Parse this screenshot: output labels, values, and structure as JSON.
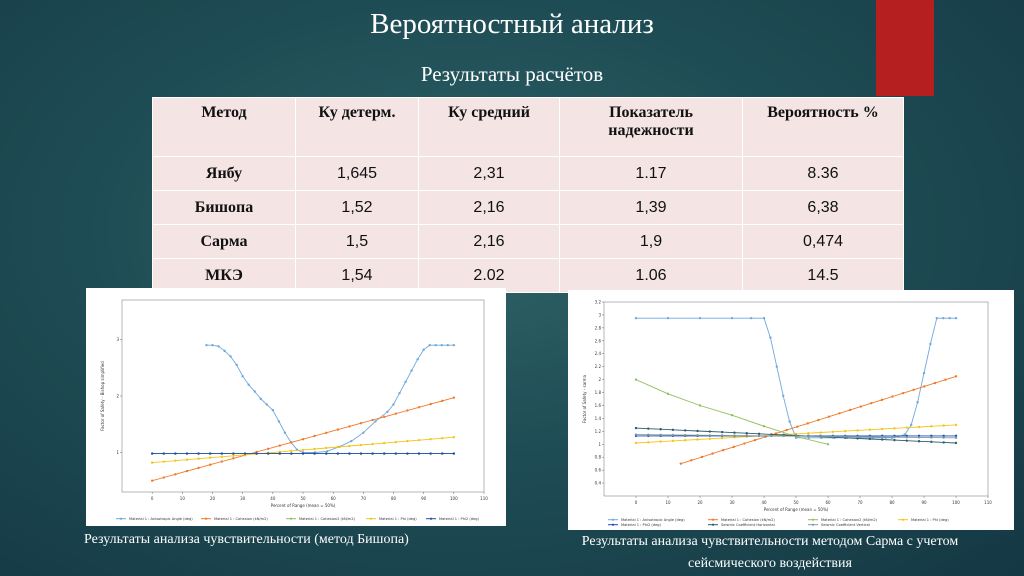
{
  "title": "Вероятностный анализ",
  "subtitle": "Результаты расчётов",
  "table": {
    "headers": [
      "Метод",
      "Ку детерм.",
      "Ку средний",
      "Показатель надежности",
      "Вероятность %"
    ],
    "rows": [
      [
        "Янбу",
        "1,645",
        "2,31",
        "1.17",
        "8.36"
      ],
      [
        "Бишопа",
        "1,52",
        "2,16",
        "1,39",
        "6,38"
      ],
      [
        "Сарма",
        "1,5",
        "2,16",
        "1,9",
        "0,474"
      ],
      [
        "МКЭ",
        "1,54",
        "2.02",
        "1.06",
        "14.5"
      ]
    ]
  },
  "captions": {
    "left": "Результаты анализа чувствительности (метод Бишопа)",
    "right_line1": "Результаты анализа чувствительности методом Сарма с учетом",
    "right_line2": "сейсмического воздействия"
  },
  "colors": {
    "red_accent": "#b51f1f",
    "table_bg": "#f4e4e4",
    "series": [
      "#6fa8dc",
      "#f07a2a",
      "#8fbf5a",
      "#f5c518",
      "#1f4fa8",
      "#2e5a70"
    ]
  },
  "chart_data": [
    {
      "type": "line",
      "xlabel": "Percent of Range (mean = 50%)",
      "ylabel": "Factor of Safety - Bishop simplified",
      "xlim": [
        -10,
        110
      ],
      "xticks": [
        0,
        10,
        20,
        30,
        40,
        50,
        60,
        70,
        80,
        90,
        100,
        110
      ],
      "ylim": [
        0.3,
        3.7
      ],
      "yticks": [
        1,
        2,
        3
      ],
      "series": [
        {
          "name": "Material 1 : Anisotropic Angle (deg)",
          "color": "#6fa8dc",
          "x": [
            18,
            20,
            22,
            24,
            26,
            28,
            30,
            32,
            34,
            36,
            38,
            40,
            42,
            44,
            46,
            48,
            50,
            54,
            58,
            62,
            66,
            70,
            74,
            78,
            80,
            82,
            84,
            86,
            88,
            90,
            92,
            94,
            96,
            98,
            100
          ],
          "y": [
            2.9,
            2.9,
            2.88,
            2.8,
            2.7,
            2.55,
            2.35,
            2.2,
            2.08,
            1.95,
            1.85,
            1.75,
            1.55,
            1.35,
            1.18,
            1.05,
            1.0,
            1.0,
            1.02,
            1.1,
            1.2,
            1.35,
            1.55,
            1.72,
            1.85,
            2.05,
            2.25,
            2.45,
            2.65,
            2.82,
            2.9,
            2.9,
            2.9,
            2.9,
            2.9
          ]
        },
        {
          "name": "Material 1 : Cohesion (kN/m2)",
          "color": "#f07a2a",
          "x": [
            0,
            100
          ],
          "y": [
            0.5,
            1.97
          ]
        },
        {
          "name": "Material 1 : Cohesion2 (kN/m2)",
          "color": "#8fbf5a",
          "x": [
            0,
            100
          ],
          "y": [
            0.98,
            0.98
          ]
        },
        {
          "name": "Material 1 : Phi (deg)",
          "color": "#f5c518",
          "x": [
            0,
            100
          ],
          "y": [
            0.82,
            1.27
          ]
        },
        {
          "name": "Material 1 : Phi2 (deg)",
          "color": "#1f4fa8",
          "x": [
            0,
            100
          ],
          "y": [
            0.98,
            0.98
          ]
        }
      ]
    },
    {
      "type": "line",
      "xlabel": "Percent of Range (mean = 50%)",
      "ylabel": "Factor of Safety - sarma",
      "xlim": [
        -10,
        110
      ],
      "xticks": [
        0,
        10,
        20,
        30,
        40,
        50,
        60,
        70,
        80,
        90,
        100,
        110
      ],
      "ylim": [
        0.2,
        3.2
      ],
      "yticks": [
        0.4,
        0.6,
        0.8,
        1.0,
        1.2,
        1.4,
        1.6,
        1.8,
        2.0,
        2.2,
        2.4,
        2.6,
        2.8,
        3.0,
        3.2
      ],
      "series": [
        {
          "name": "Material 1 : Anisotropic Angle (deg)",
          "color": "#6fa8dc",
          "x": [
            0,
            10,
            20,
            30,
            36,
            40,
            42,
            44,
            46,
            48,
            50,
            54,
            58,
            62,
            66,
            70,
            74,
            78,
            80,
            82,
            84,
            86,
            88,
            90,
            92,
            94,
            96,
            98,
            100
          ],
          "y": [
            2.95,
            2.95,
            2.95,
            2.95,
            2.95,
            2.95,
            2.65,
            2.2,
            1.75,
            1.35,
            1.1,
            1.1,
            1.1,
            1.1,
            1.1,
            1.1,
            1.1,
            1.1,
            1.1,
            1.12,
            1.15,
            1.3,
            1.65,
            2.1,
            2.55,
            2.95,
            2.95,
            2.95,
            2.95
          ]
        },
        {
          "name": "Material 1 : Cohesion (kN/m2)",
          "color": "#f07a2a",
          "x": [
            14,
            100
          ],
          "y": [
            0.7,
            2.05
          ]
        },
        {
          "name": "Material 1 : Cohesion2 (kN/m2)",
          "color": "#8fbf5a",
          "x": [
            0,
            10,
            20,
            30,
            40,
            50,
            60
          ],
          "y": [
            2.0,
            1.78,
            1.6,
            1.45,
            1.28,
            1.12,
            1.0
          ]
        },
        {
          "name": "Material 1 : Phi (deg)",
          "color": "#f5c518",
          "x": [
            0,
            100
          ],
          "y": [
            1.02,
            1.3
          ]
        },
        {
          "name": "Material 1 : Phi2 (deg)",
          "color": "#1f4fa8",
          "x": [
            0,
            100
          ],
          "y": [
            1.13,
            1.13
          ]
        },
        {
          "name": "Seismic Coefficient Horizontal",
          "color": "#2e5a70",
          "x": [
            0,
            100
          ],
          "y": [
            1.25,
            1.02
          ]
        },
        {
          "name": "Seismic Coefficient Vertical",
          "color": "#7f9aa8",
          "x": [
            0,
            100
          ],
          "y": [
            1.15,
            1.1
          ]
        }
      ]
    }
  ]
}
